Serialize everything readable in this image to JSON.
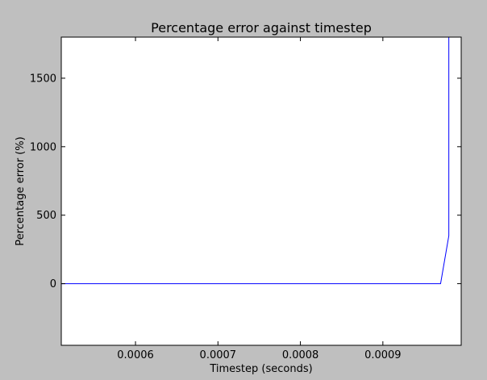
{
  "chart_data": {
    "type": "line",
    "title": "Percentage error against timestep",
    "xlabel": "Timestep (seconds)",
    "ylabel": "Percentage error (%)",
    "xlim": [
      0.00051,
      0.000995
    ],
    "ylim": [
      -450,
      1800
    ],
    "xticks": [
      0.0006,
      0.0007,
      0.0008,
      0.0009
    ],
    "xtick_labels": [
      "0.0006",
      "0.0007",
      "0.0008",
      "0.0009"
    ],
    "yticks": [
      0,
      500,
      1000,
      1500
    ],
    "ytick_labels": [
      "0",
      "500",
      "1000",
      "1500"
    ],
    "grid": false,
    "series": [
      {
        "color": "#0000ff",
        "x": [
          0.00051,
          0.00097,
          0.00098,
          0.00098
        ],
        "y": [
          0,
          0,
          350,
          1800
        ]
      }
    ]
  }
}
